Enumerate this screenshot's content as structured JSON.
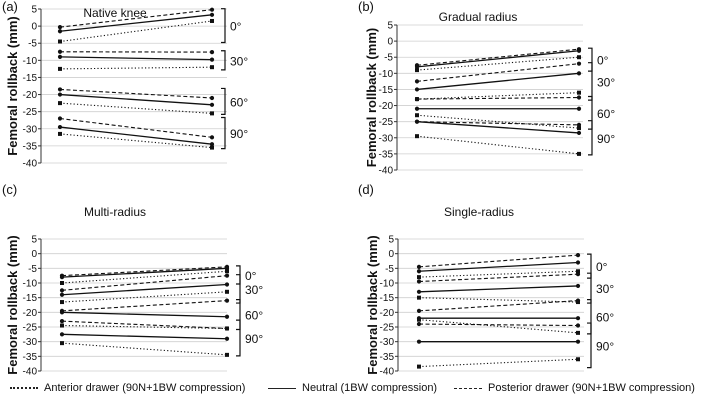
{
  "chart_data": [
    {
      "type": "line",
      "panel_label": "(a)",
      "title": "Native knee",
      "ylabel": "Femoral rollback (mm)",
      "ylim": [
        -40,
        5
      ],
      "yticks": [
        5,
        0,
        -5,
        -10,
        -15,
        -20,
        -25,
        -30,
        -35,
        -40
      ],
      "grid": true,
      "groups": [
        {
          "angle": "0°",
          "pairs": [
            {
              "style": "dashed",
              "start": -0.3,
              "end": 4.8
            },
            {
              "style": "solid",
              "start": -1.5,
              "end": 3.3
            },
            {
              "style": "dotted",
              "start": -4.5,
              "end": 1.5
            }
          ]
        },
        {
          "angle": "30°",
          "pairs": [
            {
              "style": "dashed",
              "start": -7.5,
              "end": -7.6
            },
            {
              "style": "solid",
              "start": -9.0,
              "end": -9.8
            },
            {
              "style": "dotted",
              "start": -12.5,
              "end": -12.0
            }
          ]
        },
        {
          "angle": "60°",
          "pairs": [
            {
              "style": "dashed",
              "start": -18.5,
              "end": -21.0
            },
            {
              "style": "solid",
              "start": -20.0,
              "end": -23.0
            },
            {
              "style": "dotted",
              "start": -22.5,
              "end": -25.5
            }
          ]
        },
        {
          "angle": "90°",
          "pairs": [
            {
              "style": "dashed",
              "start": -27.0,
              "end": -32.5
            },
            {
              "style": "solid",
              "start": -29.5,
              "end": -34.5
            },
            {
              "style": "dotted",
              "start": -31.5,
              "end": -35.5
            }
          ]
        }
      ]
    },
    {
      "type": "line",
      "panel_label": "(b)",
      "title": "Gradual radius",
      "ylabel": "Femoral rollback (mm)",
      "ylim": [
        -40,
        5
      ],
      "yticks": [
        5,
        0,
        -5,
        -10,
        -15,
        -20,
        -25,
        -30,
        -35,
        -40
      ],
      "grid": true,
      "groups": [
        {
          "angle": "0°",
          "pairs": [
            {
              "style": "dashed",
              "start": -7.5,
              "end": -2.5
            },
            {
              "style": "solid",
              "start": -8.0,
              "end": -3.0
            },
            {
              "style": "dotted",
              "start": -9.0,
              "end": -5.0
            }
          ]
        },
        {
          "angle": "30°",
          "pairs": [
            {
              "style": "dashed",
              "start": -12.5,
              "end": -7.0
            },
            {
              "style": "solid",
              "start": -15.0,
              "end": -10.0
            },
            {
              "style": "dotted",
              "start": -18.0,
              "end": -16.0
            }
          ]
        },
        {
          "angle": "60°",
          "pairs": [
            {
              "style": "dashed",
              "start": -18.0,
              "end": -17.5
            },
            {
              "style": "solid",
              "start": -21.0,
              "end": -21.0
            },
            {
              "style": "dotted",
              "start": -23.0,
              "end": -27.0
            }
          ]
        },
        {
          "angle": "90°",
          "pairs": [
            {
              "style": "dashed",
              "start": -25.0,
              "end": -26.0
            },
            {
              "style": "solid",
              "start": -25.0,
              "end": -28.5
            },
            {
              "style": "dotted",
              "start": -29.5,
              "end": -35.0
            }
          ]
        }
      ]
    },
    {
      "type": "line",
      "panel_label": "(c)",
      "title": "Multi-radius",
      "ylabel": "Femoral rollback (mm)",
      "ylim": [
        -40,
        5
      ],
      "yticks": [
        5,
        0,
        -5,
        -10,
        -15,
        -20,
        -25,
        -30,
        -35,
        -40
      ],
      "grid": true,
      "groups": [
        {
          "angle": "0°",
          "pairs": [
            {
              "style": "dashed",
              "start": -7.5,
              "end": -4.5
            },
            {
              "style": "solid",
              "start": -8.0,
              "end": -5.0
            },
            {
              "style": "dotted",
              "start": -10.0,
              "end": -6.0
            }
          ]
        },
        {
          "angle": "30°",
          "pairs": [
            {
              "style": "dashed",
              "start": -12.5,
              "end": -7.5
            },
            {
              "style": "solid",
              "start": -14.0,
              "end": -10.5
            },
            {
              "style": "dotted",
              "start": -16.5,
              "end": -13.0
            }
          ]
        },
        {
          "angle": "60°",
          "pairs": [
            {
              "style": "dashed",
              "start": -19.5,
              "end": -16.0
            },
            {
              "style": "solid",
              "start": -20.0,
              "end": -21.5
            },
            {
              "style": "dotted",
              "start": -24.5,
              "end": -25.5
            }
          ]
        },
        {
          "angle": "90°",
          "pairs": [
            {
              "style": "dashed",
              "start": -23.0,
              "end": -25.5
            },
            {
              "style": "solid",
              "start": -27.5,
              "end": -29.0
            },
            {
              "style": "dotted",
              "start": -30.5,
              "end": -34.5
            }
          ]
        }
      ]
    },
    {
      "type": "line",
      "panel_label": "(d)",
      "title": "Single-radius",
      "ylabel": "Femoral rollback (mm)",
      "ylim": [
        -40,
        5
      ],
      "yticks": [
        5,
        0,
        -5,
        -10,
        -15,
        -20,
        -25,
        -30,
        -35,
        -40
      ],
      "grid": true,
      "groups": [
        {
          "angle": "0°",
          "pairs": [
            {
              "style": "dashed",
              "start": -4.5,
              "end": -0.5
            },
            {
              "style": "solid",
              "start": -6.0,
              "end": -3.0
            },
            {
              "style": "dotted",
              "start": -8.0,
              "end": -6.0
            }
          ]
        },
        {
          "angle": "30°",
          "pairs": [
            {
              "style": "dashed",
              "start": -9.5,
              "end": -7.0
            },
            {
              "style": "solid",
              "start": -13.0,
              "end": -11.0
            },
            {
              "style": "dotted",
              "start": -15.0,
              "end": -16.5
            }
          ]
        },
        {
          "angle": "60°",
          "pairs": [
            {
              "style": "dashed",
              "start": -19.5,
              "end": -16.0
            },
            {
              "style": "solid",
              "start": -22.0,
              "end": -22.0
            },
            {
              "style": "dotted",
              "start": -22.5,
              "end": -27.0
            }
          ]
        },
        {
          "angle": "90°",
          "pairs": [
            {
              "style": "dashed",
              "start": -24.0,
              "end": -24.5
            },
            {
              "style": "solid",
              "start": -30.0,
              "end": -30.0
            },
            {
              "style": "dotted",
              "start": -38.5,
              "end": -36.0
            }
          ]
        }
      ]
    }
  ],
  "legend": [
    {
      "style": "dotted",
      "label": "Anterior drawer (90N+1BW compression)"
    },
    {
      "style": "solid",
      "label": "Neutral (1BW compression)"
    },
    {
      "style": "dashed",
      "label": "Posterior drawer (90N+1BW compression)"
    }
  ]
}
